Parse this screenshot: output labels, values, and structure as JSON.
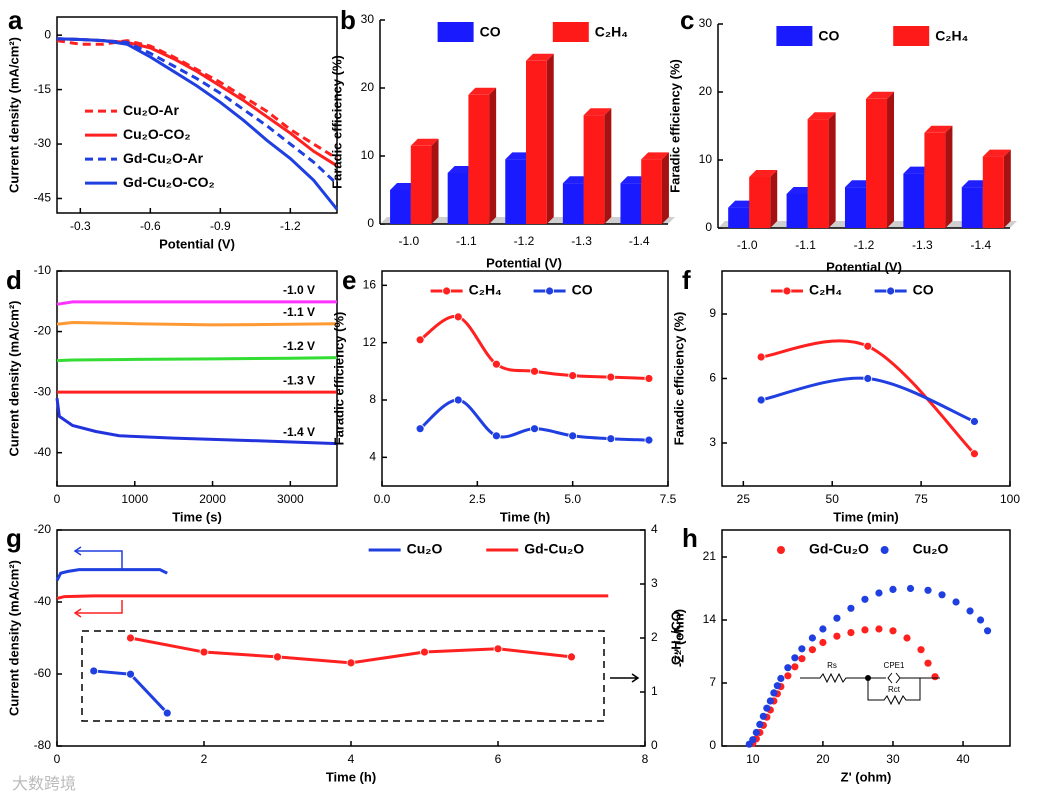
{
  "watermark": "大数跨境",
  "chart_data": [
    {
      "type": "line",
      "panel": "a",
      "xlabel": "Potential (V)",
      "ylabel": "Current density (mA/cm²)",
      "xlim": [
        -0.2,
        -1.4
      ],
      "xticks": [
        -0.3,
        -0.6,
        -0.9,
        -1.2
      ],
      "ylim": [
        -49,
        5
      ],
      "yticks": [
        0,
        -15,
        -30,
        -45
      ],
      "legend": "center left",
      "series": [
        {
          "name": "Cu₂O-Ar",
          "color": "#ff2020",
          "dash": true,
          "x": [
            -0.2,
            -0.3,
            -0.4,
            -0.5,
            -0.6,
            -0.7,
            -0.8,
            -0.9,
            -1.0,
            -1.1,
            -1.2,
            -1.3,
            -1.4
          ],
          "values": [
            -1.5,
            -2.5,
            -2.5,
            -1.5,
            -3,
            -6,
            -9.5,
            -13,
            -17,
            -21,
            -26,
            -30,
            -34
          ]
        },
        {
          "name": "Cu₂O-CO₂",
          "color": "#ff2020",
          "dash": false,
          "x": [
            -0.2,
            -0.3,
            -0.4,
            -0.5,
            -0.6,
            -0.7,
            -0.8,
            -0.9,
            -1.0,
            -1.1,
            -1.2,
            -1.3,
            -1.4
          ],
          "values": [
            -1,
            -1.2,
            -1.5,
            -2,
            -3.5,
            -6.5,
            -10,
            -14,
            -18,
            -22.5,
            -27,
            -32,
            -36
          ]
        },
        {
          "name": "Gd-Cu₂O-Ar",
          "color": "#1f3fe0",
          "dash": true,
          "x": [
            -0.2,
            -0.3,
            -0.4,
            -0.5,
            -0.6,
            -0.7,
            -0.8,
            -0.9,
            -1.0,
            -1.1,
            -1.2,
            -1.3,
            -1.4
          ],
          "values": [
            -1,
            -1.2,
            -1.5,
            -2,
            -5,
            -8.5,
            -12,
            -16,
            -20.5,
            -25,
            -30,
            -35,
            -41
          ]
        },
        {
          "name": "Gd-Cu₂O-CO₂",
          "color": "#1f3fe0",
          "dash": false,
          "x": [
            -0.2,
            -0.3,
            -0.4,
            -0.5,
            -0.6,
            -0.7,
            -0.8,
            -0.9,
            -1.0,
            -1.1,
            -1.2,
            -1.3,
            -1.4
          ],
          "values": [
            -1,
            -1.2,
            -1.5,
            -2.5,
            -6,
            -10,
            -14,
            -18.5,
            -23.5,
            -29,
            -34,
            -40,
            -48
          ]
        }
      ]
    },
    {
      "type": "bar",
      "panel": "b",
      "xlabel": "Potential (V)",
      "ylabel": "Faradic efficiency (%)",
      "categories": [
        "-1.0",
        "-1.1",
        "-1.2",
        "-1.3",
        "-1.4"
      ],
      "ylim": [
        0,
        30
      ],
      "yticks": [
        0,
        10,
        20,
        30
      ],
      "legend": "upper center",
      "series": [
        {
          "name": "CO",
          "color": "#1a1aff",
          "values": [
            5,
            7.5,
            9.5,
            6,
            6
          ]
        },
        {
          "name": "C₂H₄",
          "color": "#ff1a1a",
          "values": [
            11.5,
            19,
            24,
            16,
            9.5
          ]
        }
      ]
    },
    {
      "type": "bar",
      "panel": "c",
      "xlabel": "Potential (V)",
      "ylabel": "Faradic efficiency (%)",
      "categories": [
        "-1.0",
        "-1.1",
        "-1.2",
        "-1.3",
        "-1.4"
      ],
      "ylim": [
        0,
        30
      ],
      "yticks": [
        0,
        10,
        20,
        30
      ],
      "legend": "upper center",
      "series": [
        {
          "name": "CO",
          "color": "#1a1aff",
          "values": [
            3,
            5,
            6,
            8,
            6
          ]
        },
        {
          "name": "C₂H₄",
          "color": "#ff1a1a",
          "values": [
            7.5,
            16,
            19,
            14,
            10.5
          ]
        }
      ]
    },
    {
      "type": "line",
      "panel": "d",
      "xlabel": "Time (s)",
      "ylabel": "Current density (mA/cm²)",
      "xlim": [
        0,
        3600
      ],
      "xticks": [
        0,
        1000,
        2000,
        3000
      ],
      "ylim": [
        -45.5,
        -10
      ],
      "yticks": [
        -10,
        -20,
        -30,
        -40
      ],
      "legend": "inline",
      "series": [
        {
          "name": "-1.0 V",
          "color": "#ff33ff",
          "x": [
            0,
            200,
            1000,
            2000,
            3000,
            3600
          ],
          "values": [
            -15.5,
            -15.1,
            -15.1,
            -15.1,
            -15.1,
            -15.1
          ]
        },
        {
          "name": "-1.1 V",
          "color": "#ff9933",
          "x": [
            0,
            200,
            1000,
            2000,
            3000,
            3600
          ],
          "values": [
            -18.8,
            -18.5,
            -18.7,
            -18.9,
            -18.8,
            -18.7
          ]
        },
        {
          "name": "-1.2 V",
          "color": "#33dd33",
          "x": [
            0,
            200,
            1000,
            2000,
            3000,
            3600
          ],
          "values": [
            -24.8,
            -24.7,
            -24.6,
            -24.5,
            -24.4,
            -24.3
          ]
        },
        {
          "name": "-1.3 V",
          "color": "#ff2020",
          "x": [
            0,
            200,
            1000,
            2000,
            3000,
            3600
          ],
          "values": [
            -30,
            -30,
            -30,
            -30,
            -30,
            -30
          ]
        },
        {
          "name": "-1.4 V",
          "color": "#2233dd",
          "x": [
            0,
            30,
            200,
            500,
            800,
            1500,
            2500,
            3600
          ],
          "values": [
            -31,
            -34,
            -35.5,
            -36.5,
            -37.2,
            -37.6,
            -38,
            -38.5
          ]
        }
      ]
    },
    {
      "type": "line",
      "panel": "e",
      "xlabel": "Time (h)",
      "ylabel": "Faradic efficiency (%)",
      "xlim": [
        0,
        7.5
      ],
      "xticks": [
        {
          "value": 0,
          "label": "0.0"
        },
        2.5,
        {
          "value": 5,
          "label": "5.0"
        },
        7.5
      ],
      "ylim": [
        2,
        17
      ],
      "yticks": [
        4,
        8,
        12,
        16
      ],
      "legend": "upper center",
      "smooth": true,
      "markers": true,
      "series": [
        {
          "name": "C₂H₄",
          "color": "#ff2020",
          "x": [
            1,
            2,
            3,
            4,
            5,
            6,
            7
          ],
          "values": [
            12.2,
            13.8,
            10.5,
            10,
            9.7,
            9.6,
            9.5
          ]
        },
        {
          "name": "CO",
          "color": "#1f3fe0",
          "x": [
            1,
            2,
            3,
            4,
            5,
            6,
            7
          ],
          "values": [
            6,
            8,
            5.5,
            6,
            5.5,
            5.3,
            5.2
          ]
        }
      ]
    },
    {
      "type": "line",
      "panel": "f",
      "xlabel": "Time (min)",
      "ylabel": "Faradic efficiency (%)",
      "xlim": [
        19,
        100
      ],
      "xticks": [
        25,
        50,
        75,
        100
      ],
      "ylim": [
        1,
        11
      ],
      "yticks": [
        3,
        6,
        9
      ],
      "legend": "upper center",
      "smooth": true,
      "markers": true,
      "series": [
        {
          "name": "C₂H₄",
          "color": "#ff2020",
          "x": [
            30,
            60,
            90
          ],
          "values": [
            7,
            7.5,
            2.5
          ]
        },
        {
          "name": "CO",
          "color": "#1f3fe0",
          "x": [
            30,
            60,
            90
          ],
          "values": [
            5,
            6,
            4
          ]
        }
      ]
    },
    {
      "type": "line",
      "panel": "g",
      "xlabel": "Time (h)",
      "ylabel": "Current density (mA/cm²)",
      "y2label": "C₂H₄/CO",
      "xlim": [
        0,
        8
      ],
      "xticks": [
        0,
        2,
        4,
        6,
        8
      ],
      "ylim": [
        -80,
        -20
      ],
      "yticks": [
        -20,
        -40,
        -60,
        -80
      ],
      "y2lim": [
        0,
        4
      ],
      "y2ticks": [
        0,
        1,
        2,
        3,
        4
      ],
      "legend": "upper right",
      "series": [
        {
          "name": "Cu₂O",
          "color": "#1f3fe0",
          "x": [
            0,
            0.05,
            0.15,
            0.3,
            0.6,
            1,
            1.4,
            1.5
          ],
          "values": [
            -34,
            -32,
            -31.5,
            -31,
            -31,
            -31,
            -31,
            -32
          ]
        },
        {
          "name": "Gd-Cu₂O",
          "color": "#ff2020",
          "x": [
            0,
            0.1,
            0.5,
            2,
            4,
            6,
            7.5
          ],
          "values": [
            -39,
            -38.5,
            -38.3,
            -38.3,
            -38.3,
            -38.3,
            -38.3
          ]
        },
        {
          "axis": "y2",
          "color": "#1f3fe0",
          "markers": true,
          "x": [
            0.5,
            1,
            1.5
          ],
          "values": [
            1.39,
            1.33,
            0.61
          ]
        },
        {
          "axis": "y2",
          "color": "#ff2020",
          "markers": true,
          "x": [
            1,
            2,
            3,
            4,
            5,
            6,
            7
          ],
          "values": [
            2,
            1.74,
            1.65,
            1.54,
            1.74,
            1.8,
            1.65
          ]
        }
      ]
    },
    {
      "type": "scatter",
      "panel": "h",
      "xlabel": "Z' (ohm)",
      "ylabel": "-Z'' (ohm)",
      "xlim": [
        5.6,
        46.7
      ],
      "xticks": [
        10,
        20,
        30,
        40
      ],
      "ylim": [
        0,
        24
      ],
      "yticks": [
        0,
        7,
        14,
        21
      ],
      "legend": "upper center",
      "inset_labels": [
        "Rs",
        "CPE1",
        "Rct"
      ],
      "series": [
        {
          "name": "Gd-Cu₂O",
          "color": "#ff2020",
          "x": [
            10,
            10.5,
            11,
            11.5,
            12,
            12.5,
            13,
            13.5,
            14,
            15,
            16,
            17,
            18.5,
            20,
            22,
            24,
            26,
            28,
            30,
            32,
            34,
            35,
            36
          ],
          "values": [
            0.3,
            0.8,
            1.5,
            2.3,
            3.2,
            4,
            5,
            5.8,
            6.6,
            7.8,
            8.8,
            9.7,
            10.7,
            11.5,
            12.2,
            12.6,
            12.9,
            13,
            12.8,
            12,
            10.7,
            9.2,
            7.7
          ]
        },
        {
          "name": "Cu₂O",
          "color": "#1f3fe0",
          "x": [
            9.5,
            10,
            10.5,
            11,
            11.5,
            12,
            12.5,
            13,
            13.5,
            14,
            15,
            16,
            17,
            18.5,
            20,
            22,
            24,
            26,
            28,
            30,
            32.5,
            35,
            37,
            39,
            41,
            42.5,
            43.5
          ],
          "values": [
            0.2,
            0.7,
            1.5,
            2.4,
            3.3,
            4.2,
            5,
            5.9,
            6.7,
            7.5,
            8.7,
            9.8,
            10.8,
            12,
            13,
            14.2,
            15.3,
            16.3,
            17,
            17.4,
            17.5,
            17.3,
            16.8,
            16,
            15,
            14,
            12.8
          ]
        }
      ]
    }
  ]
}
